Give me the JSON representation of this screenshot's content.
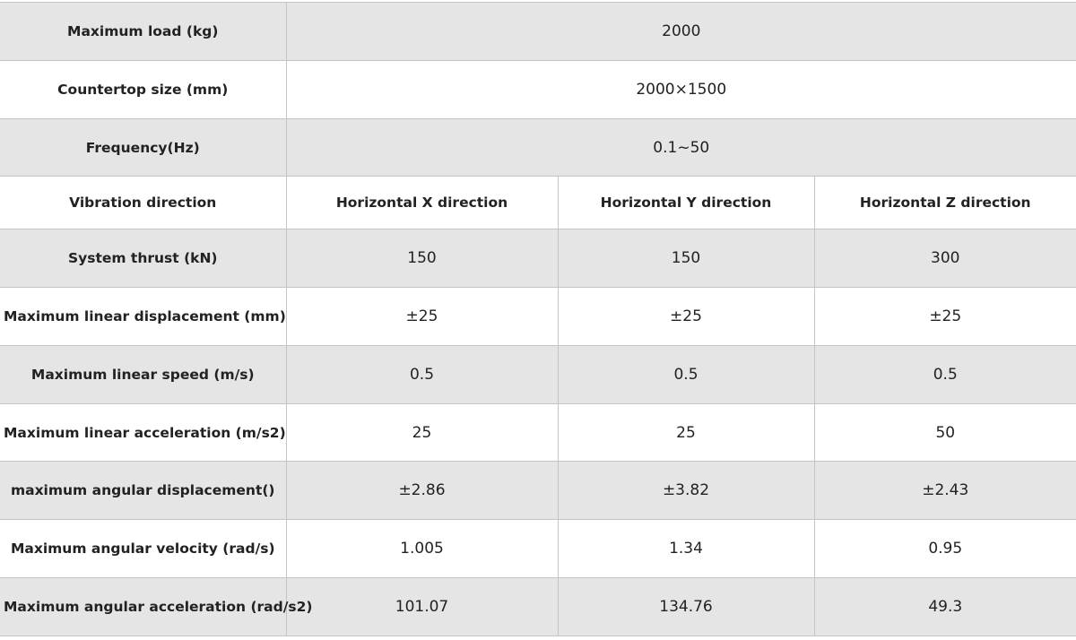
{
  "table": {
    "rows": [
      [
        "Maximum load (kg)",
        "2000"
      ],
      [
        "Countertop size (mm)",
        "2000×1500"
      ],
      [
        "Frequency(Hz)",
        "0.1~50"
      ],
      [
        "Vibration direction",
        "Horizontal X direction",
        "Horizontal Y direction",
        "Horizontal Z direction"
      ],
      [
        "System thrust (kN)",
        "150",
        "150",
        "300"
      ],
      [
        "Maximum linear displacement (mm)",
        "±25",
        "±25",
        "±25"
      ],
      [
        "Maximum linear speed (m/s)",
        "0.5",
        "0.5",
        "0.5"
      ],
      [
        "Maximum linear acceleration (m/s2)",
        "25",
        "25",
        "50"
      ],
      [
        "maximum angular displacement()",
        "±2.86",
        "±3.82",
        "±2.43"
      ],
      [
        "Maximum angular velocity (rad/s)",
        "1.005",
        "1.34",
        "0.95"
      ],
      [
        "Maximum angular acceleration (rad/s2)",
        "101.07",
        "134.76",
        "49.3"
      ]
    ]
  }
}
